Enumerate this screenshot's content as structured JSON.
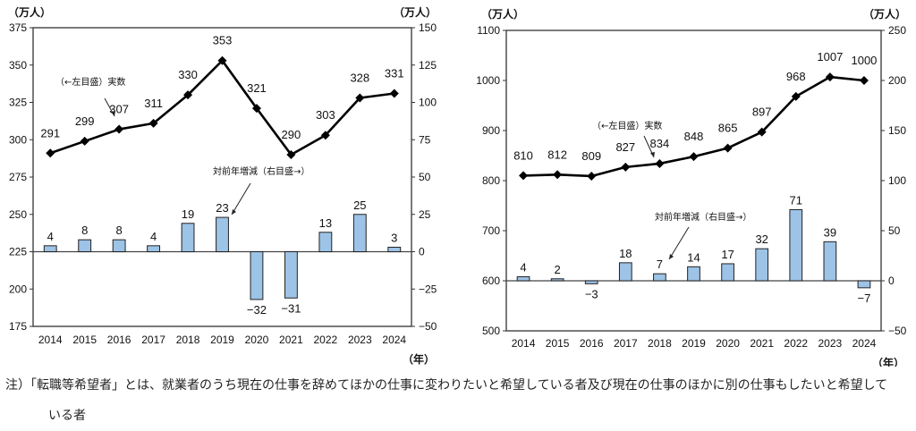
{
  "chart_data": [
    {
      "type": "bar+line",
      "name": "left-chart",
      "categories": [
        "2014",
        "2015",
        "2016",
        "2017",
        "2018",
        "2019",
        "2020",
        "2021",
        "2022",
        "2023",
        "2024"
      ],
      "series": [
        {
          "name": "実数",
          "axis": "left",
          "type": "line",
          "values": [
            291,
            299,
            307,
            311,
            330,
            353,
            321,
            290,
            303,
            328,
            331
          ]
        },
        {
          "name": "対前年増減",
          "axis": "right",
          "type": "bar",
          "values": [
            4,
            8,
            8,
            4,
            19,
            23,
            -32,
            -31,
            13,
            25,
            3
          ]
        }
      ],
      "y_left": {
        "unit": "（万人）",
        "range": [
          175,
          375
        ],
        "ticks": [
          175,
          200,
          225,
          250,
          275,
          300,
          325,
          350,
          375
        ]
      },
      "y_right": {
        "unit": "（万人）",
        "range": [
          -50,
          150
        ],
        "ticks": [
          -50,
          -25,
          0,
          25,
          50,
          75,
          100,
          125,
          150
        ]
      },
      "xlabel": "（年）",
      "annotations": [
        {
          "text": "（←左目盛）実数"
        },
        {
          "text": "対前年増減（右目盛→）"
        }
      ],
      "data_labels": {
        "line": [
          "291",
          "299",
          "307",
          "311",
          "330",
          "353",
          "321",
          "290",
          "303",
          "328",
          "331"
        ],
        "bar": [
          "4",
          "8",
          "8",
          "4",
          "19",
          "23",
          "−32",
          "−31",
          "13",
          "25",
          "3"
        ]
      },
      "grid": false
    },
    {
      "type": "bar+line",
      "name": "right-chart",
      "categories": [
        "2014",
        "2015",
        "2016",
        "2017",
        "2018",
        "2019",
        "2020",
        "2021",
        "2022",
        "2023",
        "2024"
      ],
      "series": [
        {
          "name": "実数",
          "axis": "left",
          "type": "line",
          "values": [
            810,
            812,
            809,
            827,
            834,
            848,
            865,
            897,
            968,
            1007,
            1000
          ]
        },
        {
          "name": "対前年増減",
          "axis": "right",
          "type": "bar",
          "values": [
            4,
            2,
            -3,
            18,
            7,
            14,
            17,
            32,
            71,
            39,
            -7
          ]
        }
      ],
      "y_left": {
        "unit": "（万人）",
        "range": [
          500,
          1100
        ],
        "ticks": [
          500,
          600,
          700,
          800,
          900,
          1000,
          1100
        ]
      },
      "y_right": {
        "unit": "（万人）",
        "range": [
          -50,
          250
        ],
        "ticks": [
          -50,
          0,
          50,
          100,
          150,
          200,
          250
        ]
      },
      "xlabel": "（年）",
      "annotations": [
        {
          "text": "（←左目盛）実数"
        },
        {
          "text": "対前年増減（右目盛→）"
        }
      ],
      "data_labels": {
        "line": [
          "810",
          "812",
          "809",
          "827",
          "834",
          "848",
          "865",
          "897",
          "968",
          "1007",
          "1000"
        ],
        "bar": [
          "4",
          "2",
          "−3",
          "18",
          "7",
          "14",
          "17",
          "32",
          "71",
          "39",
          "−7"
        ]
      },
      "grid": false
    }
  ],
  "colors": {
    "bar_fill": "#9dc3e6",
    "bar_stroke": "#222222",
    "line": "#000000",
    "axis": "#333333"
  },
  "note": {
    "line1": "注）「転職等希望者」とは、就業者のうち現在の仕事を辞めてほかの仕事に変わりたいと希望している者及び現在の仕事のほかに別の仕事もしたいと希望して",
    "line2": "いる者"
  }
}
